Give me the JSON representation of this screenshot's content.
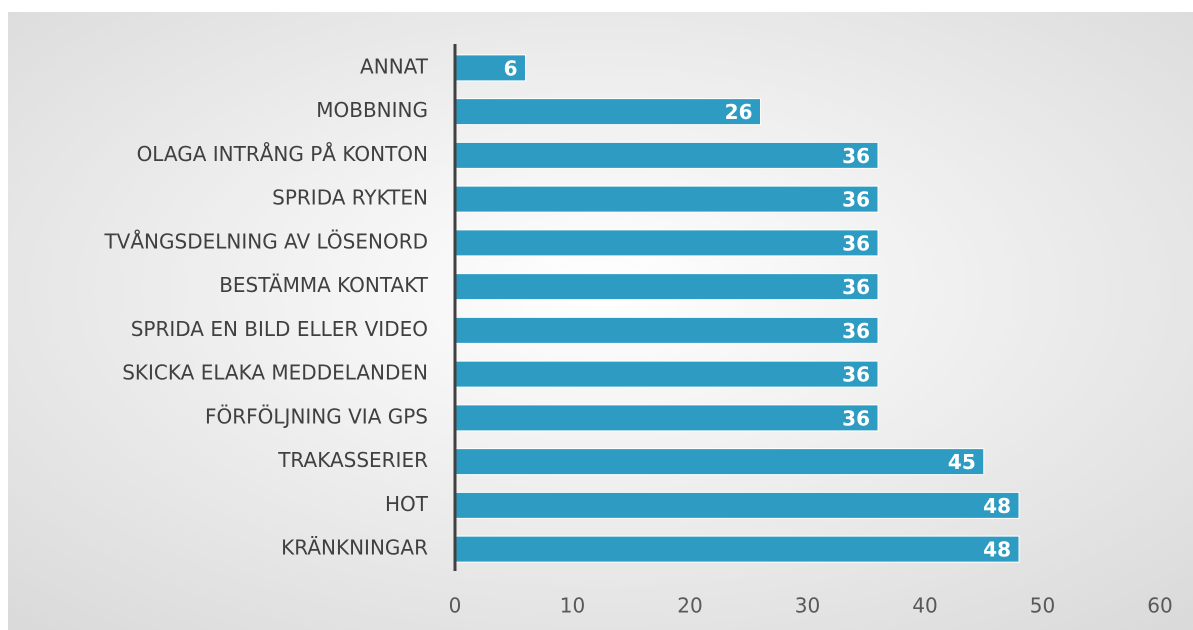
{
  "chart_data": {
    "type": "bar",
    "orientation": "horizontal",
    "categories": [
      "ANNAT",
      "MOBBNING",
      "OLAGA INTRÅNG PÅ KONTON",
      "SPRIDA RYKTEN",
      "TVÅNGSDELNING AV LÖSENORD",
      "BESTÄMMA KONTAKT",
      "SPRIDA EN BILD ELLER VIDEO",
      "SKICKA ELAKA MEDDELANDEN",
      "FÖRFÖLJNING VIA GPS",
      "TRAKASSERIER",
      "HOT",
      "KRÄNKNINGAR"
    ],
    "values": [
      6,
      26,
      36,
      36,
      36,
      36,
      36,
      36,
      36,
      45,
      48,
      48
    ],
    "color": "#2e9bc2",
    "xlim": [
      0,
      60
    ],
    "xticks": [
      0,
      10,
      20,
      30,
      40,
      50,
      60
    ]
  }
}
